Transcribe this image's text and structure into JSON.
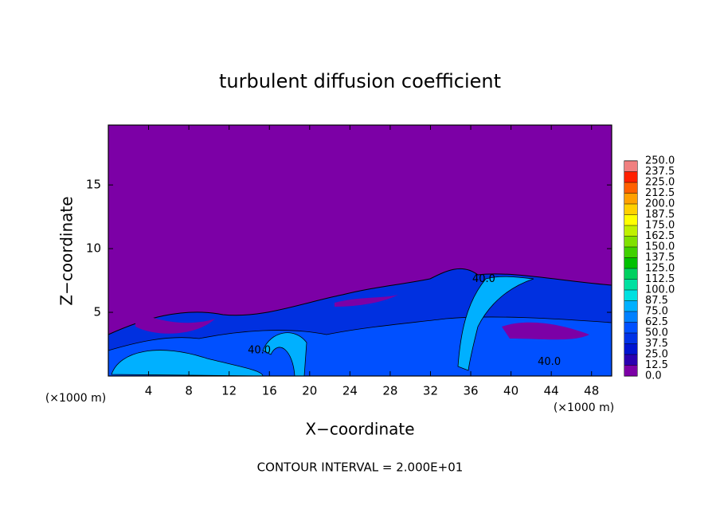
{
  "chart_data": {
    "type": "contour",
    "title": "turbulent diffusion coefficient",
    "x_label": "X−coordinate",
    "y_label": "Z−coordinate",
    "x_unit_left": "(×1000 m)",
    "x_unit_right": "(×1000 m)",
    "footer": "CONTOUR INTERVAL = 2.000E+01",
    "xlim": [
      0,
      50
    ],
    "ylim": [
      0,
      19.7
    ],
    "xticks": [
      4,
      8,
      12,
      16,
      20,
      24,
      28,
      32,
      36,
      40,
      44,
      48
    ],
    "yticks": [
      5,
      10,
      15
    ],
    "background_color": "#7c00a6",
    "contour_labels": [
      {
        "text": "40.0",
        "x": 37.3,
        "y": 7.6
      },
      {
        "text": "40.0",
        "x": 15.0,
        "y": 2.0
      },
      {
        "text": "40.0",
        "x": 43.8,
        "y": 1.1
      }
    ],
    "colorbar": {
      "lim": [
        0,
        250
      ],
      "ticks": [
        {
          "value": 0,
          "label": "0.0"
        },
        {
          "value": 12.5,
          "label": "12.5"
        },
        {
          "value": 25,
          "label": "25.0"
        },
        {
          "value": 37.5,
          "label": "37.5"
        },
        {
          "value": 50,
          "label": "50.0"
        },
        {
          "value": 62.5,
          "label": "62.5"
        },
        {
          "value": 75,
          "label": "75.0"
        },
        {
          "value": 87.5,
          "label": "87.5"
        },
        {
          "value": 100,
          "label": "100.0"
        },
        {
          "value": 112.5,
          "label": "112.5"
        },
        {
          "value": 125,
          "label": "125.0"
        },
        {
          "value": 137.5,
          "label": "137.5"
        },
        {
          "value": 150,
          "label": "150.0"
        },
        {
          "value": 162.5,
          "label": "162.5"
        },
        {
          "value": 175,
          "label": "175.0"
        },
        {
          "value": 187.5,
          "label": "187.5"
        },
        {
          "value": 200,
          "label": "200.0"
        },
        {
          "value": 212.5,
          "label": "212.5"
        },
        {
          "value": 225,
          "label": "225.0"
        },
        {
          "value": 237.5,
          "label": "237.5"
        },
        {
          "value": 250,
          "label": "250.0"
        }
      ],
      "colors": [
        "#7c00a6",
        "#2a00b0",
        "#0014d0",
        "#0032e6",
        "#0050ff",
        "#0080ff",
        "#00b0ff",
        "#00e0e0",
        "#00e0a0",
        "#00d060",
        "#00c000",
        "#40d000",
        "#80e000",
        "#c0f000",
        "#ffff00",
        "#ffd000",
        "#ffa000",
        "#ff6000",
        "#ff2000",
        "#f08080"
      ]
    }
  }
}
